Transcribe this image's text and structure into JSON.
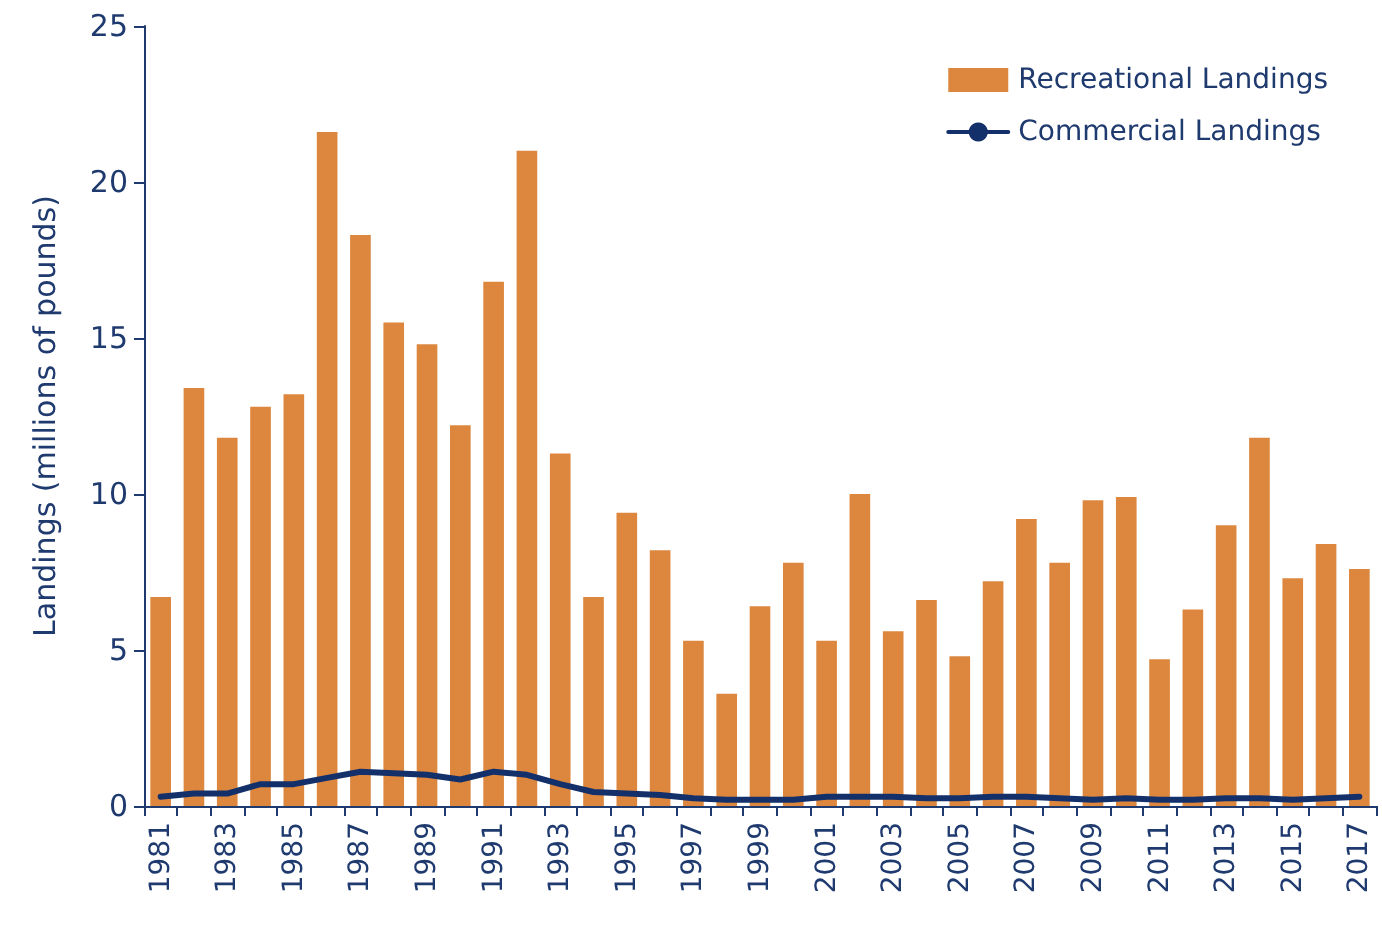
{
  "chart_data": {
    "type": "bar",
    "ylabel": "Landings (millions of pounds)",
    "categories": [
      "1981",
      null,
      "1983",
      null,
      "1985",
      null,
      "1987",
      null,
      "1989",
      null,
      "1991",
      null,
      "1993",
      null,
      "1995",
      null,
      "1997",
      null,
      "1999",
      null,
      "2001",
      null,
      "2003",
      null,
      "2005",
      null,
      "2007",
      null,
      "2009",
      null,
      "2011",
      null,
      "2013",
      null,
      "2015",
      null,
      "2017"
    ],
    "series": [
      {
        "name": "Recreational Landings",
        "color": "#dd873e",
        "values": [
          6.7,
          13.4,
          11.8,
          12.8,
          13.2,
          21.6,
          18.3,
          15.5,
          14.8,
          12.2,
          16.8,
          21.0,
          11.3,
          6.7,
          9.4,
          8.2,
          5.3,
          3.6,
          6.4,
          7.8,
          5.3,
          10.0,
          5.6,
          6.6,
          4.8,
          7.2,
          9.2,
          7.8,
          9.8,
          9.9,
          4.7,
          6.3,
          9.0,
          11.8,
          7.3,
          8.4,
          7.6
        ]
      },
      {
        "name": "Commercial Landings",
        "type": "line",
        "color": "#13306a",
        "values": [
          0.3,
          0.4,
          0.4,
          0.7,
          0.7,
          0.9,
          1.1,
          1.05,
          1.0,
          0.85,
          1.1,
          1.0,
          0.7,
          0.45,
          0.4,
          0.35,
          0.25,
          0.2,
          0.2,
          0.2,
          0.3,
          0.3,
          0.3,
          0.25,
          0.25,
          0.3,
          0.3,
          0.25,
          0.2,
          0.25,
          0.2,
          0.2,
          0.25,
          0.25,
          0.2,
          0.25,
          0.3
        ]
      }
    ],
    "ylim": [
      0,
      25
    ],
    "yticks": [
      0,
      5,
      10,
      15,
      20,
      25
    ],
    "grid": false,
    "legend": "top right",
    "marker": "none"
  }
}
